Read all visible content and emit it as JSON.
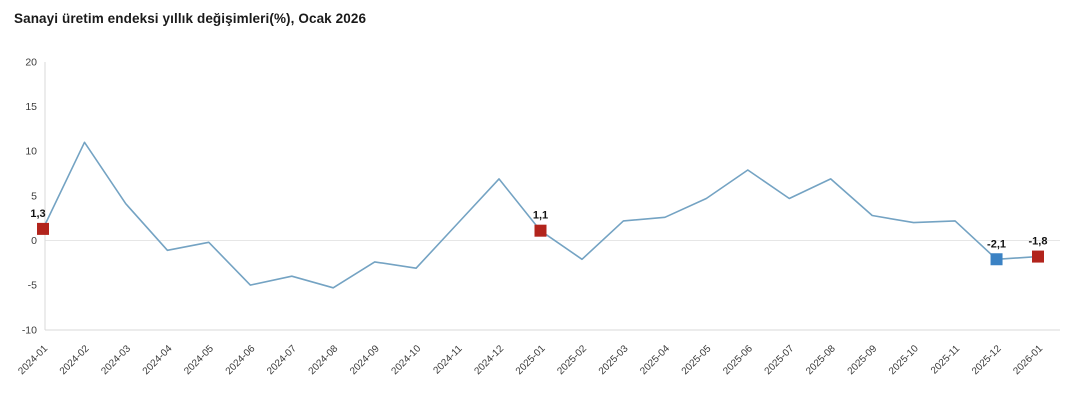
{
  "header": {
    "title": "Sanayi üretim endeksi yıllık değişimleri(%), Ocak 2026"
  },
  "chart_data": {
    "type": "line",
    "title": "Sanayi üretim endeksi yıllık değişimleri(%), Ocak 2026",
    "categories": [
      "2024-01",
      "2024-02",
      "2024-03",
      "2024-04",
      "2024-05",
      "2024-06",
      "2024-07",
      "2024-08",
      "2024-09",
      "2024-10",
      "2024-11",
      "2024-12",
      "2025-01",
      "2025-02",
      "2025-03",
      "2025-04",
      "2025-05",
      "2025-06",
      "2025-07",
      "2025-08",
      "2025-09",
      "2025-10",
      "2025-11",
      "2025-12",
      "2026-01"
    ],
    "values": [
      1.3,
      11.0,
      4.1,
      -1.1,
      -0.2,
      -5.0,
      -4.0,
      -5.3,
      -2.4,
      -3.1,
      1.9,
      6.9,
      1.1,
      -2.1,
      2.2,
      2.6,
      4.7,
      7.9,
      4.7,
      6.9,
      2.8,
      2.0,
      2.2,
      -2.1,
      -1.8
    ],
    "highlight_points": [
      {
        "index": 0,
        "category": "2024-01",
        "label": "1,3",
        "marker_color": "#b2241c"
      },
      {
        "index": 12,
        "category": "2025-01",
        "label": "1,1",
        "marker_color": "#b2241c"
      },
      {
        "index": 23,
        "category": "2025-12",
        "label": "-2,1",
        "marker_color": "#3b82c4"
      },
      {
        "index": 24,
        "category": "2026-01",
        "label": "-1,8",
        "marker_color": "#b2241c"
      }
    ],
    "ylim": [
      -10,
      20
    ],
    "yticks": [
      20,
      15,
      10,
      5,
      0,
      -5,
      -10
    ],
    "xlabel": "",
    "ylabel": "",
    "line_color": "#74a3c3",
    "axis_color": "#d9d9d9",
    "zero_line_color": "#e6e6e6",
    "grid": "zero line only",
    "legend_position": "none"
  }
}
